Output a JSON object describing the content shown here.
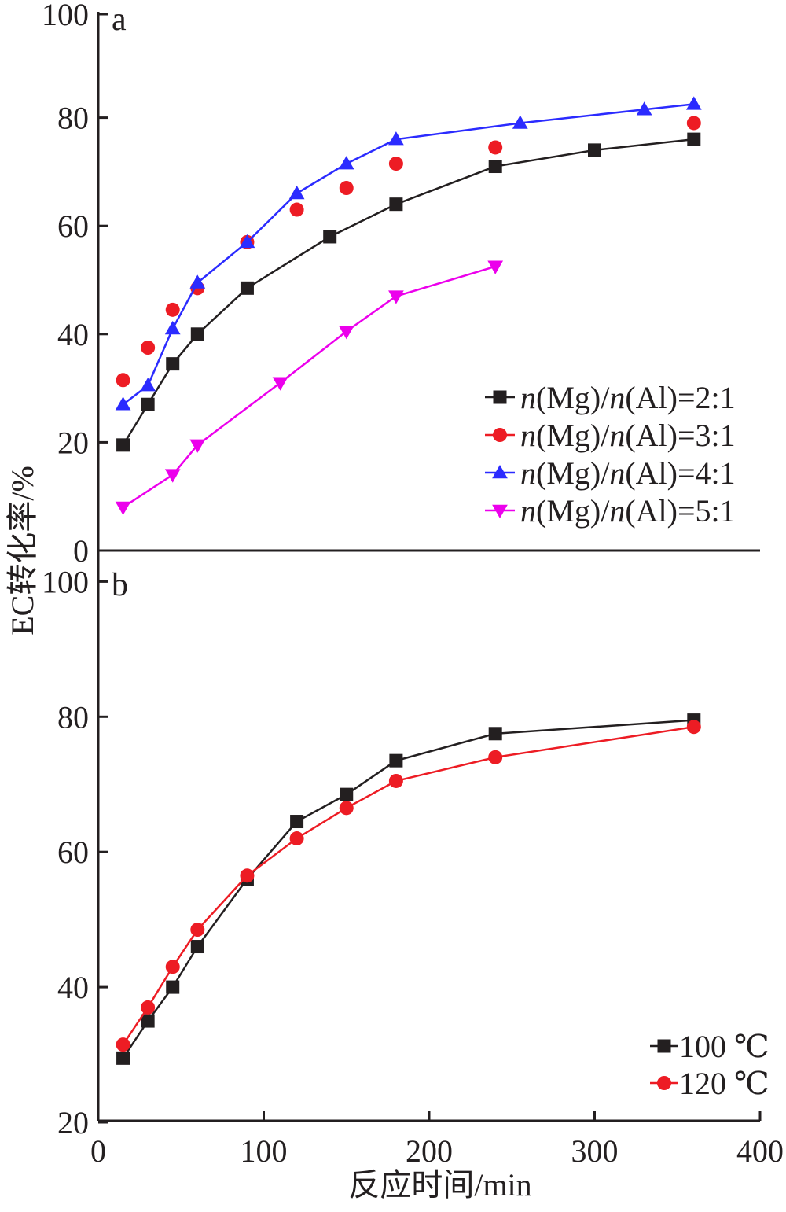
{
  "chart_data": [
    {
      "panel_label": "a",
      "type": "line",
      "xlim": [
        0,
        400
      ],
      "ylim": [
        0,
        100
      ],
      "y_ticks": [
        "0",
        "20",
        "40",
        "60",
        "80",
        "100"
      ],
      "legend_position": "right",
      "series": [
        {
          "name": "n(Mg)/n(Al)=2:1",
          "name_parts": [
            "n",
            "(Mg)/",
            "n",
            "(Al)=2:1"
          ],
          "color": "#231f20",
          "marker": "square",
          "line": true,
          "x": [
            15,
            30,
            45,
            60,
            90,
            140,
            180,
            240,
            300,
            360
          ],
          "y": [
            19.5,
            27,
            34.5,
            40,
            48.5,
            58,
            64,
            71,
            74,
            76
          ]
        },
        {
          "name": "n(Mg)/n(Al)=3:1",
          "name_parts": [
            "n",
            "(Mg)/",
            "n",
            "(Al)=3:1"
          ],
          "color": "#ed1c24",
          "marker": "circle",
          "line": false,
          "x": [
            15,
            30,
            45,
            60,
            90,
            120,
            150,
            180,
            240,
            360
          ],
          "y": [
            31.5,
            37.5,
            44.5,
            48.5,
            57,
            63,
            67,
            71.5,
            74.5,
            79
          ]
        },
        {
          "name": "n(Mg)/n(Al)=4:1",
          "name_parts": [
            "n",
            "(Mg)/",
            "n",
            "(Al)=4:1"
          ],
          "color": "#2b2bff",
          "marker": "triangle-up",
          "line": true,
          "x": [
            15,
            30,
            45,
            60,
            90,
            120,
            150,
            180,
            255,
            330,
            360
          ],
          "y": [
            27,
            30.5,
            41,
            49.5,
            57,
            66,
            71.5,
            76,
            79,
            81.5,
            82.5
          ]
        },
        {
          "name": "n(Mg)/n(Al)=5:1",
          "name_parts": [
            "n",
            "(Mg)/",
            "n",
            "(Al)=5:1"
          ],
          "color": "#ec00ec",
          "marker": "triangle-down",
          "line": true,
          "x": [
            15,
            45,
            60,
            110,
            150,
            180,
            240
          ],
          "y": [
            8,
            14,
            19.5,
            31,
            40.5,
            47,
            52.5
          ]
        }
      ]
    },
    {
      "panel_label": "b",
      "type": "line",
      "xlim": [
        0,
        400
      ],
      "ylim": [
        20,
        100
      ],
      "x_ticks": [
        "0",
        "100",
        "200",
        "300",
        "400"
      ],
      "y_ticks": [
        "20",
        "40",
        "60",
        "80",
        "100"
      ],
      "xlabel": "反应时间/min",
      "legend_position": "bottom-right",
      "series": [
        {
          "name": "100 ℃",
          "color": "#231f20",
          "marker": "square",
          "line": true,
          "x": [
            15,
            30,
            45,
            60,
            90,
            120,
            150,
            180,
            240,
            360
          ],
          "y": [
            29.5,
            35,
            40,
            46,
            56,
            64.5,
            68.5,
            73.5,
            77.5,
            79.5
          ]
        },
        {
          "name": "120 ℃",
          "color": "#ed1c24",
          "marker": "circle",
          "line": true,
          "x": [
            15,
            30,
            45,
            60,
            90,
            120,
            150,
            180,
            240,
            360
          ],
          "y": [
            31.5,
            37,
            43,
            48.5,
            56.5,
            62,
            66.5,
            70.5,
            74,
            78.5
          ]
        }
      ]
    }
  ],
  "ylabel": "EC转化率/%"
}
